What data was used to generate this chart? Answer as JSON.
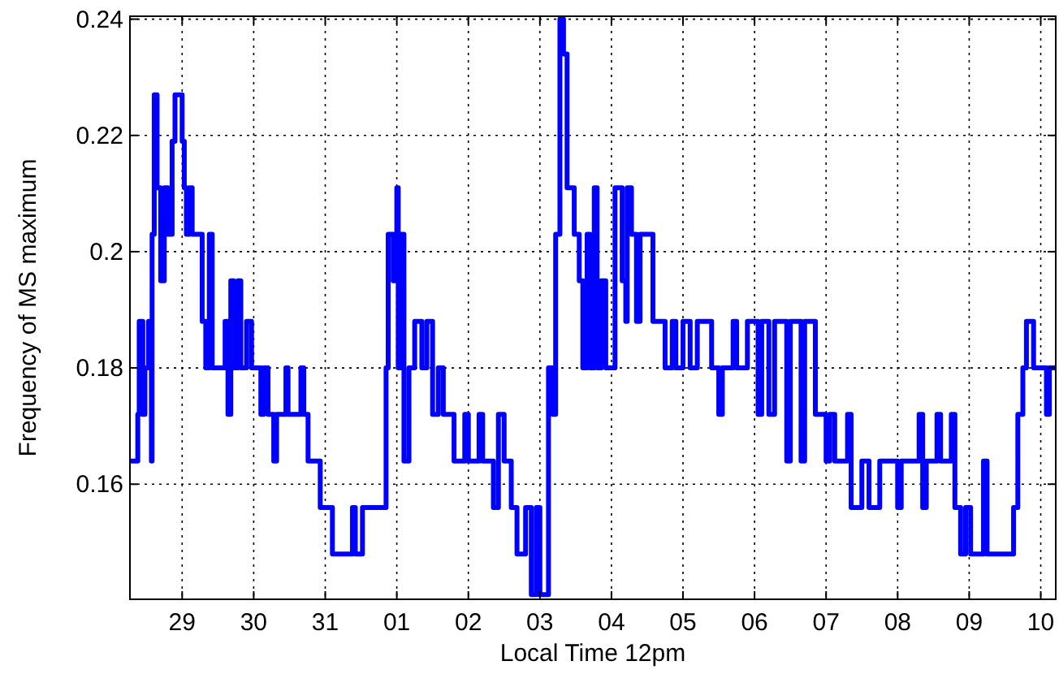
{
  "chart_data": {
    "type": "step",
    "xlabel": "Local Time 12pm",
    "ylabel": "Frequency of MS maximum",
    "grid": true,
    "line_style": "solid",
    "xlim": [
      "--07-28T06:29",
      "--08-10T05:02"
    ],
    "ylim": [
      0.1402,
      0.2405
    ],
    "xticks": [
      {
        "value": "--07-29",
        "label": "29"
      },
      {
        "value": "--07-30",
        "label": "30"
      },
      {
        "value": "--07-31",
        "label": "31"
      },
      {
        "value": "--08-01",
        "label": "01"
      },
      {
        "value": "--08-02",
        "label": "02"
      },
      {
        "value": "--08-03",
        "label": "03"
      },
      {
        "value": "--08-04",
        "label": "04"
      },
      {
        "value": "--08-05",
        "label": "05"
      },
      {
        "value": "--08-06",
        "label": "06"
      },
      {
        "value": "--08-07",
        "label": "07"
      },
      {
        "value": "--08-08",
        "label": "08"
      },
      {
        "value": "--08-09",
        "label": "09"
      },
      {
        "value": "--08-10",
        "label": "10"
      }
    ],
    "yticks": [
      0.16,
      0.18,
      {
        "value": 0.2,
        "label": "0.2"
      },
      0.22,
      0.24
    ],
    "series": [
      {
        "color": "#0000ff",
        "x": [
          "--07-28T06:29",
          "--07-28T09:07",
          "--07-28T09:36",
          "--07-28T10:48",
          "--07-28T11:31",
          "--07-28T12:43",
          "--07-28T13:41",
          "--07-28T13:55",
          "--07-28T14:38",
          "--07-28T15:36",
          "--07-28T16:48",
          "--07-28T18:00",
          "--07-28T19:12",
          "--07-28T20:38",
          "--07-28T21:36",
          "--07-29T00:00",
          "--07-29T00:43",
          "--07-29T01:26",
          "--07-29T02:24",
          "--07-29T03:22",
          "--07-29T06:43",
          "--07-29T07:55",
          "--07-29T09:07",
          "--07-29T10:05",
          "--07-29T14:24",
          "--07-29T15:22",
          "--07-29T16:19",
          "--07-29T17:17",
          "--07-29T18:43",
          "--07-29T19:41",
          "--07-29T21:36",
          "--07-29T23:17",
          "--07-30T02:24",
          "--07-30T03:22",
          "--07-30T04:48",
          "--07-30T06:43",
          "--07-30T07:41",
          "--07-30T10:48",
          "--07-30T11:31",
          "--07-30T15:50",
          "--07-30T16:48",
          "--07-30T18:14",
          "--07-30T22:19",
          "--07-31T02:24",
          "--07-31T09:07",
          "--07-31T10:05",
          "--07-31T12:29",
          "--07-31T20:24",
          "--07-31T21:07",
          "--07-31T22:48",
          "--08-01T00:00",
          "--08-01T00:29",
          "--08-01T01:26",
          "--08-01T02:24",
          "--08-01T04:05",
          "--08-01T06:00",
          "--08-01T08:24",
          "--08-01T10:05",
          "--08-01T12:00",
          "--08-01T13:55",
          "--08-01T15:36",
          "--08-01T19:12",
          "--08-01T22:48",
          "--08-02T00:00",
          "--08-02T03:36",
          "--08-02T04:48",
          "--08-02T08:24",
          "--08-02T10:05",
          "--08-02T12:00",
          "--08-02T14:24",
          "--08-02T16:19",
          "--08-02T19:12",
          "--08-02T21:07",
          "--08-02T22:48",
          "--08-03T00:00",
          "--08-03T02:53",
          "--08-03T04:19",
          "--08-03T05:17",
          "--08-03T06:43",
          "--08-03T07:55",
          "--08-03T09:07",
          "--08-03T11:31",
          "--08-03T13:12",
          "--08-03T14:24",
          "--08-03T15:50",
          "--08-03T16:48",
          "--08-03T18:14",
          "--08-03T19:12",
          "--08-03T20:38",
          "--08-03T22:05",
          "--08-04T01:12",
          "--08-04T03:36",
          "--08-04T04:48",
          "--08-04T05:17",
          "--08-04T06:43",
          "--08-04T08:24",
          "--08-04T09:36",
          "--08-04T13:55",
          "--08-04T18:00",
          "--08-04T20:24",
          "--08-04T21:36",
          "--08-05T00:00",
          "--08-05T02:24",
          "--08-05T04:48",
          "--08-05T09:36",
          "--08-05T12:00",
          "--08-05T13:12",
          "--08-05T16:48",
          "--08-05T18:00",
          "--08-05T21:36",
          "--08-06T01:12",
          "--08-06T02:24",
          "--08-06T04:48",
          "--08-06T06:43",
          "--08-06T10:48",
          "--08-06T12:00",
          "--08-06T15:36",
          "--08-06T16:48",
          "--08-06T20:24",
          "--08-07T00:00",
          "--08-07T01:12",
          "--08-07T02:53",
          "--08-07T07:12",
          "--08-07T08:24",
          "--08-07T12:00",
          "--08-07T14:24",
          "--08-07T18:00",
          "--08-08T00:00",
          "--08-08T01:12",
          "--08-08T07:12",
          "--08-08T08:24",
          "--08-08T09:36",
          "--08-08T13:12",
          "--08-08T14:24",
          "--08-08T18:00",
          "--08-08T19:12",
          "--08-08T21:07",
          "--08-08T22:48",
          "--08-09T00:29",
          "--08-09T04:48",
          "--08-09T06:00",
          "--08-09T14:53",
          "--08-09T16:19",
          "--08-09T18:00",
          "--08-09T19:12",
          "--08-09T21:36",
          "--08-10T01:55",
          "--08-10T02:53",
          "--08-10T05:02"
        ],
        "values": [
          0.164,
          0.172,
          0.188,
          0.172,
          0.18,
          0.188,
          0.164,
          0.203,
          0.227,
          0.211,
          0.195,
          0.211,
          0.203,
          0.219,
          0.227,
          0.219,
          0.211,
          0.203,
          0.211,
          0.203,
          0.188,
          0.18,
          0.203,
          0.18,
          0.188,
          0.172,
          0.195,
          0.18,
          0.195,
          0.18,
          0.188,
          0.18,
          0.172,
          0.18,
          0.172,
          0.164,
          0.172,
          0.18,
          0.172,
          0.18,
          0.172,
          0.164,
          0.156,
          0.148,
          0.156,
          0.148,
          0.156,
          0.18,
          0.203,
          0.195,
          0.211,
          0.18,
          0.203,
          0.164,
          0.18,
          0.188,
          0.18,
          0.188,
          0.172,
          0.18,
          0.172,
          0.164,
          0.172,
          0.164,
          0.172,
          0.164,
          0.156,
          0.172,
          0.164,
          0.156,
          0.148,
          0.156,
          0.141,
          0.156,
          0.141,
          0.18,
          0.172,
          0.203,
          0.24,
          0.234,
          0.211,
          0.203,
          0.195,
          0.18,
          0.203,
          0.18,
          0.211,
          0.18,
          0.195,
          0.18,
          0.211,
          0.195,
          0.188,
          0.211,
          0.203,
          0.188,
          0.203,
          0.188,
          0.18,
          0.188,
          0.18,
          0.188,
          0.18,
          0.188,
          0.18,
          0.172,
          0.18,
          0.188,
          0.18,
          0.188,
          0.172,
          0.188,
          0.172,
          0.188,
          0.164,
          0.188,
          0.164,
          0.188,
          0.172,
          0.164,
          0.172,
          0.164,
          0.172,
          0.156,
          0.164,
          0.156,
          0.164,
          0.156,
          0.164,
          0.172,
          0.156,
          0.164,
          0.172,
          0.164,
          0.172,
          0.156,
          0.148,
          0.156,
          0.148,
          0.164,
          0.148,
          0.156,
          0.172,
          0.18,
          0.188,
          0.18,
          0.172,
          0.18,
          0.18
        ]
      }
    ]
  }
}
